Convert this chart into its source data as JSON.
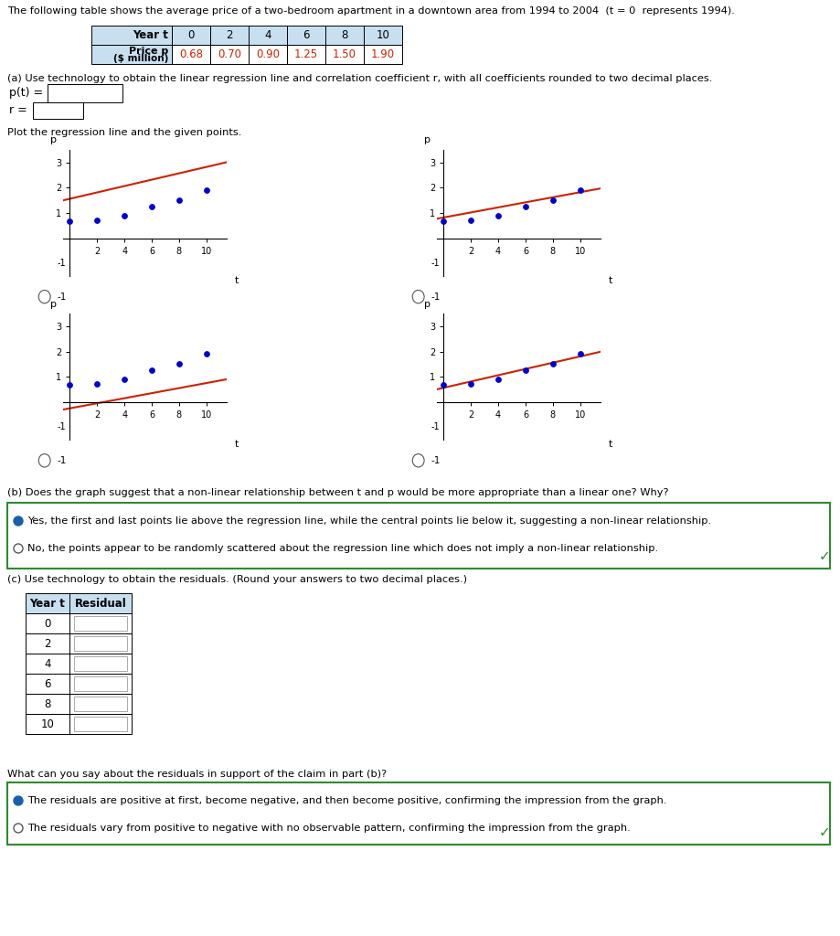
{
  "title_text": "The following table shows the average price of a two-bedroom apartment in a downtown area from 1994 to 2004  (t = 0  represents 1994).",
  "table_years": [
    0,
    2,
    4,
    6,
    8,
    10
  ],
  "table_prices": [
    0.68,
    0.7,
    0.9,
    1.25,
    1.5,
    1.9
  ],
  "table_header_bg": "#c8dff0",
  "part_a_text": "(a) Use technology to obtain the linear regression line and correlation coefficient r, with all coefficients rounded to two decimal places.",
  "scatter_color": "#0000cc",
  "line_color": "#cc2200",
  "plot_lines": [
    [
      1.56,
      0.126
    ],
    [
      0.82,
      0.1
    ],
    [
      -0.25,
      0.1
    ],
    [
      0.564,
      0.124
    ]
  ],
  "part_b_text": "(b) Does the graph suggest that a non-linear relationship between t and p would be more appropriate than a linear one? Why?",
  "part_b_option1": "Yes, the first and last points lie above the regression line, while the central points lie below it, suggesting a non-linear relationship.",
  "part_b_option2": "No, the points appear to be randomly scattered about the regression line which does not imply a non-linear relationship.",
  "part_c_text": "(c) Use technology to obtain the residuals. (Round your answers to two decimal places.)",
  "residual_years": [
    0,
    2,
    4,
    6,
    8,
    10
  ],
  "what_text": "What can you say about the residuals in support of the claim in part (b)?",
  "what_option1": "The residuals are positive at first, become negative, and then become positive, confirming the impression from the graph.",
  "what_option2": "The residuals vary from positive to negative with no observable pattern, confirming the impression from the graph.",
  "bg_color": "#ffffff",
  "box_border_color": "#2e8b2e",
  "radio_filled_color": "#1a5faa",
  "checkmark_color": "#2e8b2e"
}
